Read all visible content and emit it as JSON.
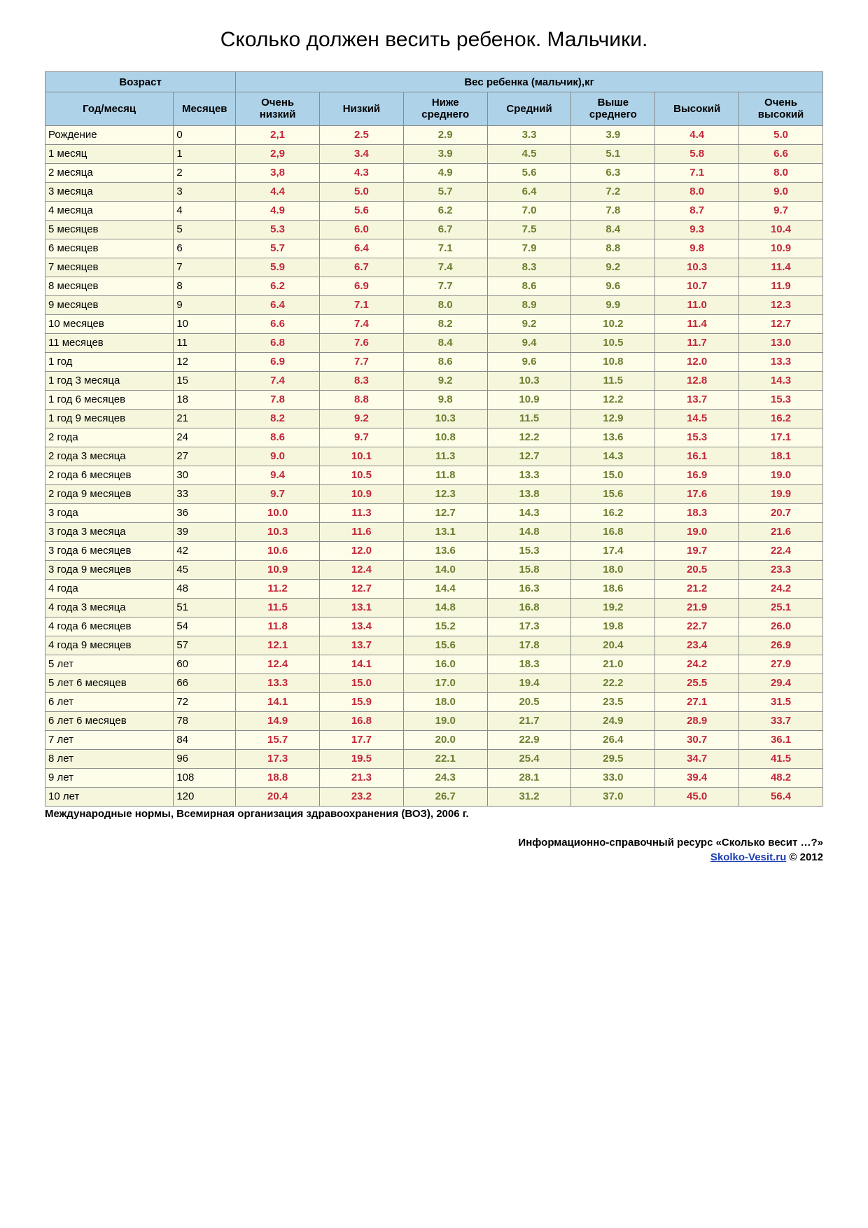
{
  "title": "Сколько должен весить ребенок. Мальчики.",
  "table": {
    "header_group_age": "Возраст",
    "header_group_weight": "Вес ребенка (мальчик),кг",
    "col_age": "Год/месяц",
    "col_months": "Месяцев",
    "columns": [
      "Очень\nнизкий",
      "Низкий",
      "Ниже\nсреднего",
      "Средний",
      "Выше\nсреднего",
      "Высокий",
      "Очень\nвысокий"
    ],
    "value_colors": {
      "very_low": "#c22637",
      "low": "#c22637",
      "below_avg": "#6b7d2e",
      "avg": "#6b7d2e",
      "above_avg": "#6b7d2e",
      "high": "#c22637",
      "very_high": "#c22637"
    },
    "header_bg": "#aed2e8",
    "row_bg_even": "#fefde9",
    "row_bg_odd": "#f6f6dd",
    "border_color": "#8a8a8a",
    "font_family": "Verdana",
    "title_fontsize": 30,
    "header_fontsize": 15,
    "cell_fontsize": 15,
    "rows": [
      {
        "age": "Рождение",
        "months": "0",
        "v": [
          "2,1",
          "2.5",
          "2.9",
          "3.3",
          "3.9",
          "4.4",
          "5.0"
        ]
      },
      {
        "age": "1 месяц",
        "months": "1",
        "v": [
          "2,9",
          "3.4",
          "3.9",
          "4.5",
          "5.1",
          "5.8",
          "6.6"
        ]
      },
      {
        "age": "2 месяца",
        "months": "2",
        "v": [
          "3,8",
          "4.3",
          "4.9",
          "5.6",
          "6.3",
          "7.1",
          "8.0"
        ]
      },
      {
        "age": "3 месяца",
        "months": "3",
        "v": [
          "4.4",
          "5.0",
          "5.7",
          "6.4",
          "7.2",
          "8.0",
          "9.0"
        ]
      },
      {
        "age": "4 месяца",
        "months": "4",
        "v": [
          "4.9",
          "5.6",
          "6.2",
          "7.0",
          "7.8",
          "8.7",
          "9.7"
        ]
      },
      {
        "age": "5 месяцев",
        "months": "5",
        "v": [
          "5.3",
          "6.0",
          "6.7",
          "7.5",
          "8.4",
          "9.3",
          "10.4"
        ]
      },
      {
        "age": "6 месяцев",
        "months": "6",
        "v": [
          "5.7",
          "6.4",
          "7.1",
          "7.9",
          "8.8",
          "9.8",
          "10.9"
        ]
      },
      {
        "age": "7 месяцев",
        "months": "7",
        "v": [
          "5.9",
          "6.7",
          "7.4",
          "8.3",
          "9.2",
          "10.3",
          "11.4"
        ]
      },
      {
        "age": "8 месяцев",
        "months": "8",
        "v": [
          "6.2",
          "6.9",
          "7.7",
          "8.6",
          "9.6",
          "10.7",
          "11.9"
        ]
      },
      {
        "age": "9 месяцев",
        "months": "9",
        "v": [
          "6.4",
          "7.1",
          "8.0",
          "8.9",
          "9.9",
          "11.0",
          "12.3"
        ]
      },
      {
        "age": "10 месяцев",
        "months": "10",
        "v": [
          "6.6",
          "7.4",
          "8.2",
          "9.2",
          "10.2",
          "11.4",
          "12.7"
        ]
      },
      {
        "age": "11 месяцев",
        "months": "11",
        "v": [
          "6.8",
          "7.6",
          "8.4",
          "9.4",
          "10.5",
          "11.7",
          "13.0"
        ]
      },
      {
        "age": "1 год",
        "months": "12",
        "v": [
          "6.9",
          "7.7",
          "8.6",
          "9.6",
          "10.8",
          "12.0",
          "13.3"
        ]
      },
      {
        "age": "1 год 3 месяца",
        "months": "15",
        "v": [
          "7.4",
          "8.3",
          "9.2",
          "10.3",
          "11.5",
          "12.8",
          "14.3"
        ]
      },
      {
        "age": "1 год 6 месяцев",
        "months": "18",
        "v": [
          "7.8",
          "8.8",
          "9.8",
          "10.9",
          "12.2",
          "13.7",
          "15.3"
        ]
      },
      {
        "age": "1 год 9 месяцев",
        "months": "21",
        "v": [
          "8.2",
          "9.2",
          "10.3",
          "11.5",
          "12.9",
          "14.5",
          "16.2"
        ]
      },
      {
        "age": "2 года",
        "months": "24",
        "v": [
          "8.6",
          "9.7",
          "10.8",
          "12.2",
          "13.6",
          "15.3",
          "17.1"
        ]
      },
      {
        "age": "2 года 3 месяца",
        "months": "27",
        "v": [
          "9.0",
          "10.1",
          "11.3",
          "12.7",
          "14.3",
          "16.1",
          "18.1"
        ]
      },
      {
        "age": "2 года 6 месяцев",
        "months": "30",
        "v": [
          "9.4",
          "10.5",
          "11.8",
          "13.3",
          "15.0",
          "16.9",
          "19.0"
        ]
      },
      {
        "age": "2 года 9 месяцев",
        "months": "33",
        "v": [
          "9.7",
          "10.9",
          "12.3",
          "13.8",
          "15.6",
          "17.6",
          "19.9"
        ]
      },
      {
        "age": "3 года",
        "months": "36",
        "v": [
          "10.0",
          "11.3",
          "12.7",
          "14.3",
          "16.2",
          "18.3",
          "20.7"
        ]
      },
      {
        "age": "3 года 3 месяца",
        "months": "39",
        "v": [
          "10.3",
          "11.6",
          "13.1",
          "14.8",
          "16.8",
          "19.0",
          "21.6"
        ]
      },
      {
        "age": "3 года 6 месяцев",
        "months": "42",
        "v": [
          "10.6",
          "12.0",
          "13.6",
          "15.3",
          "17.4",
          "19.7",
          "22.4"
        ]
      },
      {
        "age": "3 года 9 месяцев",
        "months": "45",
        "v": [
          "10.9",
          "12.4",
          "14.0",
          "15.8",
          "18.0",
          "20.5",
          "23.3"
        ]
      },
      {
        "age": "4 года",
        "months": "48",
        "v": [
          "11.2",
          "12.7",
          "14.4",
          "16.3",
          "18.6",
          "21.2",
          "24.2"
        ]
      },
      {
        "age": "4 года 3 месяца",
        "months": "51",
        "v": [
          "11.5",
          "13.1",
          "14.8",
          "16.8",
          "19.2",
          "21.9",
          "25.1"
        ]
      },
      {
        "age": "4 года 6 месяцев",
        "months": "54",
        "v": [
          "11.8",
          "13.4",
          "15.2",
          "17.3",
          "19.8",
          "22.7",
          "26.0"
        ]
      },
      {
        "age": "4 года 9 месяцев",
        "months": "57",
        "v": [
          "12.1",
          "13.7",
          "15.6",
          "17.8",
          "20.4",
          "23.4",
          "26.9"
        ]
      },
      {
        "age": "5 лет",
        "months": "60",
        "v": [
          "12.4",
          "14.1",
          "16.0",
          "18.3",
          "21.0",
          "24.2",
          "27.9"
        ]
      },
      {
        "age": "5 лет 6 месяцев",
        "months": "66",
        "v": [
          "13.3",
          "15.0",
          "17.0",
          "19.4",
          "22.2",
          "25.5",
          "29.4"
        ]
      },
      {
        "age": "6 лет",
        "months": "72",
        "v": [
          "14.1",
          "15.9",
          "18.0",
          "20.5",
          "23.5",
          "27.1",
          "31.5"
        ]
      },
      {
        "age": "6 лет 6 месяцев",
        "months": "78",
        "v": [
          "14.9",
          "16.8",
          "19.0",
          "21.7",
          "24.9",
          "28.9",
          "33.7"
        ]
      },
      {
        "age": "7 лет",
        "months": "84",
        "v": [
          "15.7",
          "17.7",
          "20.0",
          "22.9",
          "26.4",
          "30.7",
          "36.1"
        ]
      },
      {
        "age": "8 лет",
        "months": "96",
        "v": [
          "17.3",
          "19.5",
          "22.1",
          "25.4",
          "29.5",
          "34.7",
          "41.5"
        ]
      },
      {
        "age": "9 лет",
        "months": "108",
        "v": [
          "18.8",
          "21.3",
          "24.3",
          "28.1",
          "33.0",
          "39.4",
          "48.2"
        ]
      },
      {
        "age": "10 лет",
        "months": "120",
        "v": [
          "20.4",
          "23.2",
          "26.7",
          "31.2",
          "37.0",
          "45.0",
          "56.4"
        ]
      }
    ]
  },
  "footnote": "Международные нормы, Всемирная организация здравоохранения (ВОЗ), 2006 г.",
  "credit_line1": "Информационно-справочный ресурс «Сколько весит …?»",
  "credit_link_text": "Skolko-Vesit.ru",
  "credit_tail": " © 2012"
}
